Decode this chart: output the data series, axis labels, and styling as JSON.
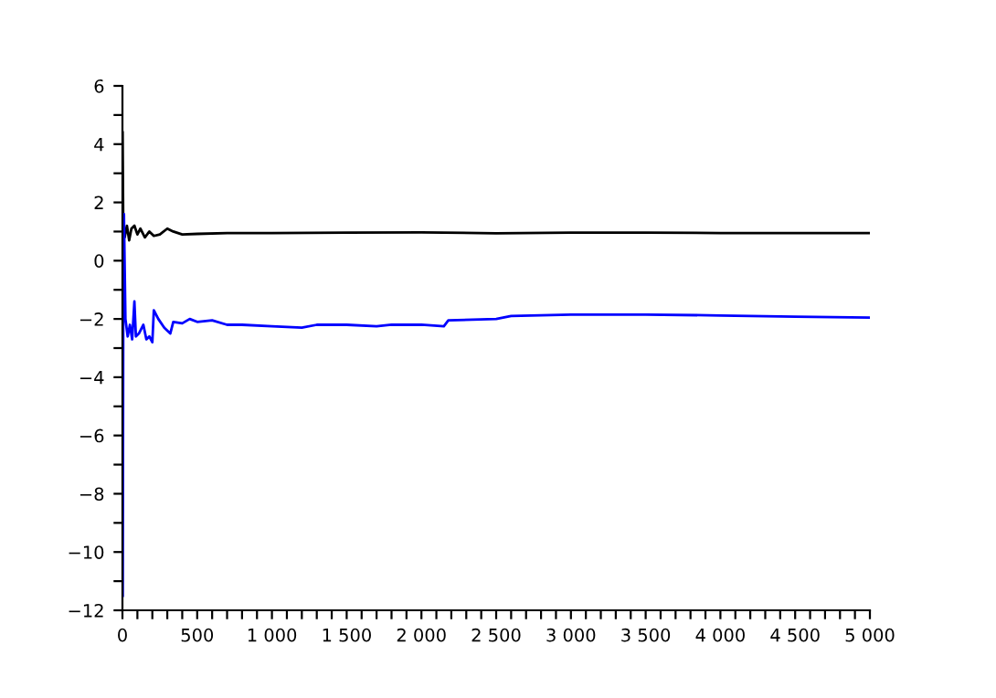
{
  "chart_data": {
    "type": "line",
    "xlim": [
      0,
      5000
    ],
    "ylim": [
      -12,
      6
    ],
    "xticks": [
      0,
      {
        "value": 100,
        "label": null
      },
      {
        "value": 200,
        "label": null
      },
      {
        "value": 300,
        "label": null
      },
      {
        "value": 400,
        "label": null
      },
      500,
      {
        "value": 600,
        "label": null
      },
      {
        "value": 700,
        "label": null
      },
      {
        "value": 800,
        "label": null
      },
      {
        "value": 900,
        "label": null
      },
      {
        "value": 1000,
        "label": "1 000"
      },
      {
        "value": 1100,
        "label": null
      },
      {
        "value": 1200,
        "label": null
      },
      {
        "value": 1300,
        "label": null
      },
      {
        "value": 1400,
        "label": null
      },
      {
        "value": 1500,
        "label": "1 500"
      },
      {
        "value": 1600,
        "label": null
      },
      {
        "value": 1700,
        "label": null
      },
      {
        "value": 1800,
        "label": null
      },
      {
        "value": 1900,
        "label": null
      },
      {
        "value": 2000,
        "label": "2 000"
      },
      {
        "value": 2100,
        "label": null
      },
      {
        "value": 2200,
        "label": null
      },
      {
        "value": 2300,
        "label": null
      },
      {
        "value": 2400,
        "label": null
      },
      {
        "value": 2500,
        "label": "2 500"
      },
      {
        "value": 2600,
        "label": null
      },
      {
        "value": 2700,
        "label": null
      },
      {
        "value": 2800,
        "label": null
      },
      {
        "value": 2900,
        "label": null
      },
      {
        "value": 3000,
        "label": "3 000"
      },
      {
        "value": 3100,
        "label": null
      },
      {
        "value": 3200,
        "label": null
      },
      {
        "value": 3300,
        "label": null
      },
      {
        "value": 3400,
        "label": null
      },
      {
        "value": 3500,
        "label": "3 500"
      },
      {
        "value": 3600,
        "label": null
      },
      {
        "value": 3700,
        "label": null
      },
      {
        "value": 3800,
        "label": null
      },
      {
        "value": 3900,
        "label": null
      },
      {
        "value": 4000,
        "label": "4 000"
      },
      {
        "value": 4100,
        "label": null
      },
      {
        "value": 4200,
        "label": null
      },
      {
        "value": 4300,
        "label": null
      },
      {
        "value": 4400,
        "label": null
      },
      {
        "value": 4500,
        "label": "4 500"
      },
      {
        "value": 4600,
        "label": null
      },
      {
        "value": 4700,
        "label": null
      },
      {
        "value": 4800,
        "label": null
      },
      {
        "value": 4900,
        "label": null
      },
      {
        "value": 5000,
        "label": "5 000"
      }
    ],
    "yticks": [
      {
        "value": -12,
        "label": "−12"
      },
      {
        "value": -11,
        "label": null
      },
      {
        "value": -10,
        "label": "−10"
      },
      {
        "value": -9,
        "label": null
      },
      {
        "value": -8,
        "label": "−8"
      },
      {
        "value": -7,
        "label": null
      },
      {
        "value": -6,
        "label": "−6"
      },
      {
        "value": -5,
        "label": null
      },
      {
        "value": -4,
        "label": "−4"
      },
      {
        "value": -3,
        "label": null
      },
      {
        "value": -2,
        "label": "−2"
      },
      {
        "value": -1,
        "label": null
      },
      0,
      {
        "value": 1,
        "label": null
      },
      2,
      {
        "value": 3,
        "label": null
      },
      4,
      {
        "value": 5,
        "label": null
      },
      6
    ],
    "grid": false,
    "legend": false,
    "marker": "none",
    "line_style": "solid",
    "series": [
      {
        "color": "#000000",
        "x": [
          1,
          5,
          15,
          30,
          45,
          60,
          80,
          100,
          120,
          150,
          180,
          210,
          250,
          300,
          340,
          400,
          500,
          700,
          1000,
          1500,
          2000,
          2500,
          3000,
          3500,
          4000,
          4500,
          5000
        ],
        "values": [
          4.4,
          1.5,
          0.8,
          1.2,
          0.7,
          1.1,
          1.2,
          0.9,
          1.1,
          0.8,
          1.0,
          0.85,
          0.9,
          1.1,
          1.0,
          0.9,
          0.92,
          0.95,
          0.95,
          0.96,
          0.97,
          0.94,
          0.96,
          0.96,
          0.95,
          0.95,
          0.95
        ]
      },
      {
        "color": "#0000ff",
        "x": [
          2,
          4,
          6,
          10,
          20,
          35,
          50,
          65,
          80,
          90,
          110,
          140,
          160,
          180,
          200,
          210,
          240,
          280,
          320,
          340,
          400,
          450,
          500,
          600,
          700,
          800,
          1000,
          1200,
          1300,
          1500,
          1700,
          1800,
          2000,
          2150,
          2180,
          2500,
          2600,
          3000,
          3500,
          4000,
          4500,
          5000
        ],
        "values": [
          -11.5,
          -6,
          0,
          1.6,
          -2.0,
          -2.6,
          -2.2,
          -2.7,
          -1.4,
          -2.6,
          -2.5,
          -2.2,
          -2.7,
          -2.6,
          -2.8,
          -1.7,
          -2.0,
          -2.3,
          -2.5,
          -2.1,
          -2.15,
          -2.0,
          -2.1,
          -2.05,
          -2.2,
          -2.2,
          -2.25,
          -2.3,
          -2.2,
          -2.2,
          -2.25,
          -2.2,
          -2.2,
          -2.25,
          -2.05,
          -2.0,
          -1.9,
          -1.85,
          -1.85,
          -1.88,
          -1.92,
          -1.95
        ]
      }
    ]
  }
}
